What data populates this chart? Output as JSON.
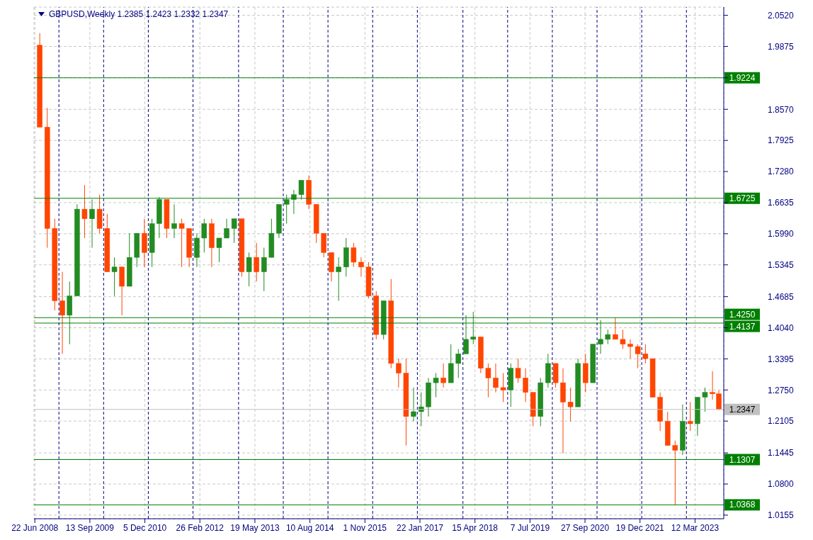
{
  "chart_data": {
    "type": "candlestick",
    "title": "GBPUSD,Weekly  1.2385 1.2423 1.2332 1.2347",
    "x": [
      "2008-08-01",
      "2008-10-01",
      "2008-12-01",
      "2009-02-01",
      "2009-04-01",
      "2009-06-01",
      "2009-08-01",
      "2009-10-01",
      "2009-12-01",
      "2010-02-01",
      "2010-04-01",
      "2010-06-01",
      "2010-08-01",
      "2010-10-01",
      "2010-12-01",
      "2011-02-01",
      "2011-04-01",
      "2011-06-01",
      "2011-08-01",
      "2011-10-01",
      "2011-12-01",
      "2012-02-01",
      "2012-04-01",
      "2012-06-01",
      "2012-08-01",
      "2012-10-01",
      "2012-12-01",
      "2013-02-01",
      "2013-04-01",
      "2013-06-01",
      "2013-08-01",
      "2013-10-01",
      "2013-12-01",
      "2014-02-01",
      "2014-04-01",
      "2014-06-01",
      "2014-08-01",
      "2014-10-01",
      "2014-12-01",
      "2015-02-01",
      "2015-04-01",
      "2015-06-01",
      "2015-08-01",
      "2015-10-01",
      "2015-12-01",
      "2016-02-01",
      "2016-04-01",
      "2016-06-01",
      "2016-08-01",
      "2016-10-01",
      "2016-12-01",
      "2017-02-01",
      "2017-04-01",
      "2017-06-01",
      "2017-08-01",
      "2017-10-01",
      "2017-12-01",
      "2018-02-01",
      "2018-04-01",
      "2018-06-01",
      "2018-08-01",
      "2018-10-01",
      "2018-12-01",
      "2019-02-01",
      "2019-04-01",
      "2019-06-01",
      "2019-08-01",
      "2019-10-01",
      "2019-12-01",
      "2020-02-01",
      "2020-04-01",
      "2020-06-01",
      "2020-08-01",
      "2020-10-01",
      "2020-12-01",
      "2021-02-01",
      "2021-04-01",
      "2021-06-01",
      "2021-08-01",
      "2021-10-01",
      "2021-12-01",
      "2022-02-01",
      "2022-04-01",
      "2022-06-01",
      "2022-08-01",
      "2022-10-01",
      "2022-12-01",
      "2023-02-01",
      "2023-04-01",
      "2023-06-01",
      "2023-08-01",
      "2023-09-22"
    ],
    "ohlc": [
      [
        1.99,
        2.015,
        1.82,
        1.82
      ],
      [
        1.82,
        1.86,
        1.57,
        1.61
      ],
      [
        1.61,
        1.63,
        1.44,
        1.46
      ],
      [
        1.46,
        1.52,
        1.35,
        1.43
      ],
      [
        1.43,
        1.5,
        1.37,
        1.47
      ],
      [
        1.47,
        1.66,
        1.47,
        1.65
      ],
      [
        1.65,
        1.7,
        1.59,
        1.63
      ],
      [
        1.63,
        1.67,
        1.57,
        1.65
      ],
      [
        1.65,
        1.68,
        1.6,
        1.61
      ],
      [
        1.61,
        1.64,
        1.52,
        1.52
      ],
      [
        1.52,
        1.55,
        1.47,
        1.53
      ],
      [
        1.53,
        1.53,
        1.43,
        1.49
      ],
      [
        1.49,
        1.6,
        1.49,
        1.55
      ],
      [
        1.55,
        1.6,
        1.53,
        1.6
      ],
      [
        1.6,
        1.63,
        1.53,
        1.56
      ],
      [
        1.56,
        1.63,
        1.53,
        1.62
      ],
      [
        1.62,
        1.675,
        1.59,
        1.67
      ],
      [
        1.67,
        1.67,
        1.59,
        1.61
      ],
      [
        1.61,
        1.66,
        1.59,
        1.62
      ],
      [
        1.62,
        1.63,
        1.53,
        1.61
      ],
      [
        1.61,
        1.61,
        1.53,
        1.55
      ],
      [
        1.55,
        1.6,
        1.53,
        1.59
      ],
      [
        1.59,
        1.63,
        1.56,
        1.62
      ],
      [
        1.62,
        1.63,
        1.53,
        1.57
      ],
      [
        1.57,
        1.59,
        1.54,
        1.59
      ],
      [
        1.59,
        1.63,
        1.59,
        1.61
      ],
      [
        1.61,
        1.63,
        1.58,
        1.63
      ],
      [
        1.63,
        1.63,
        1.51,
        1.52
      ],
      [
        1.52,
        1.56,
        1.49,
        1.55
      ],
      [
        1.55,
        1.58,
        1.5,
        1.52
      ],
      [
        1.52,
        1.57,
        1.48,
        1.55
      ],
      [
        1.55,
        1.63,
        1.55,
        1.6
      ],
      [
        1.6,
        1.66,
        1.59,
        1.66
      ],
      [
        1.66,
        1.68,
        1.62,
        1.67
      ],
      [
        1.67,
        1.69,
        1.64,
        1.68
      ],
      [
        1.68,
        1.71,
        1.67,
        1.71
      ],
      [
        1.71,
        1.72,
        1.65,
        1.66
      ],
      [
        1.66,
        1.66,
        1.58,
        1.6
      ],
      [
        1.6,
        1.6,
        1.55,
        1.56
      ],
      [
        1.56,
        1.56,
        1.5,
        1.52
      ],
      [
        1.52,
        1.55,
        1.46,
        1.53
      ],
      [
        1.53,
        1.59,
        1.51,
        1.57
      ],
      [
        1.57,
        1.58,
        1.53,
        1.54
      ],
      [
        1.54,
        1.55,
        1.51,
        1.53
      ],
      [
        1.53,
        1.54,
        1.465,
        1.47
      ],
      [
        1.47,
        1.48,
        1.38,
        1.39
      ],
      [
        1.39,
        1.46,
        1.38,
        1.46
      ],
      [
        1.46,
        1.505,
        1.32,
        1.33
      ],
      [
        1.33,
        1.34,
        1.28,
        1.31
      ],
      [
        1.31,
        1.34,
        1.16,
        1.22
      ],
      [
        1.22,
        1.28,
        1.21,
        1.23
      ],
      [
        1.23,
        1.27,
        1.2,
        1.24
      ],
      [
        1.24,
        1.3,
        1.22,
        1.29
      ],
      [
        1.29,
        1.31,
        1.26,
        1.3
      ],
      [
        1.3,
        1.33,
        1.28,
        1.29
      ],
      [
        1.29,
        1.37,
        1.29,
        1.33
      ],
      [
        1.33,
        1.36,
        1.3,
        1.35
      ],
      [
        1.35,
        1.43,
        1.35,
        1.38
      ],
      [
        1.38,
        1.437,
        1.37,
        1.385
      ],
      [
        1.385,
        1.385,
        1.31,
        1.32
      ],
      [
        1.32,
        1.33,
        1.26,
        1.3
      ],
      [
        1.3,
        1.33,
        1.27,
        1.28
      ],
      [
        1.28,
        1.31,
        1.25,
        1.275
      ],
      [
        1.275,
        1.33,
        1.24,
        1.32
      ],
      [
        1.32,
        1.34,
        1.29,
        1.3
      ],
      [
        1.3,
        1.32,
        1.25,
        1.27
      ],
      [
        1.27,
        1.27,
        1.2,
        1.22
      ],
      [
        1.22,
        1.3,
        1.2,
        1.29
      ],
      [
        1.29,
        1.35,
        1.28,
        1.33
      ],
      [
        1.33,
        1.33,
        1.28,
        1.29
      ],
      [
        1.29,
        1.32,
        1.144,
        1.25
      ],
      [
        1.25,
        1.28,
        1.21,
        1.24
      ],
      [
        1.24,
        1.34,
        1.24,
        1.33
      ],
      [
        1.33,
        1.35,
        1.27,
        1.29
      ],
      [
        1.29,
        1.37,
        1.29,
        1.37
      ],
      [
        1.37,
        1.42,
        1.35,
        1.38
      ],
      [
        1.38,
        1.4,
        1.37,
        1.39
      ],
      [
        1.39,
        1.425,
        1.38,
        1.38
      ],
      [
        1.38,
        1.4,
        1.36,
        1.37
      ],
      [
        1.37,
        1.38,
        1.34,
        1.365
      ],
      [
        1.365,
        1.37,
        1.32,
        1.35
      ],
      [
        1.35,
        1.37,
        1.33,
        1.34
      ],
      [
        1.34,
        1.34,
        1.26,
        1.26
      ],
      [
        1.26,
        1.27,
        1.19,
        1.21
      ],
      [
        1.21,
        1.23,
        1.16,
        1.16
      ],
      [
        1.16,
        1.17,
        1.036,
        1.15
      ],
      [
        1.15,
        1.245,
        1.14,
        1.21
      ],
      [
        1.21,
        1.25,
        1.19,
        1.205
      ],
      [
        1.205,
        1.26,
        1.18,
        1.26
      ],
      [
        1.26,
        1.28,
        1.23,
        1.27
      ],
      [
        1.27,
        1.314,
        1.255,
        1.267
      ],
      [
        1.267,
        1.274,
        1.2332,
        1.2347
      ]
    ],
    "colors": [
      "#ff4500",
      "#ff4500",
      "#ff4500",
      "#ff4500",
      "#228b22",
      "#228b22",
      "#ff4500",
      "#228b22",
      "#ff4500",
      "#ff4500",
      "#228b22",
      "#ff4500",
      "#228b22",
      "#228b22",
      "#ff4500",
      "#228b22",
      "#228b22",
      "#ff4500",
      "#228b22",
      "#ff4500",
      "#ff4500",
      "#228b22",
      "#228b22",
      "#ff4500",
      "#228b22",
      "#228b22",
      "#228b22",
      "#ff4500",
      "#228b22",
      "#ff4500",
      "#228b22",
      "#228b22",
      "#228b22",
      "#228b22",
      "#228b22",
      "#228b22",
      "#ff4500",
      "#ff4500",
      "#ff4500",
      "#ff4500",
      "#228b22",
      "#228b22",
      "#ff4500",
      "#ff4500",
      "#ff4500",
      "#ff4500",
      "#228b22",
      "#ff4500",
      "#ff4500",
      "#ff4500",
      "#228b22",
      "#228b22",
      "#228b22",
      "#228b22",
      "#ff4500",
      "#228b22",
      "#228b22",
      "#228b22",
      "#228b22",
      "#ff4500",
      "#ff4500",
      "#ff4500",
      "#ff4500",
      "#228b22",
      "#ff4500",
      "#ff4500",
      "#ff4500",
      "#228b22",
      "#228b22",
      "#ff4500",
      "#ff4500",
      "#ff4500",
      "#228b22",
      "#ff4500",
      "#228b22",
      "#228b22",
      "#228b22",
      "#ff4500",
      "#ff4500",
      "#ff4500",
      "#ff4500",
      "#ff4500",
      "#ff4500",
      "#ff4500",
      "#ff4500",
      "#ff4500",
      "#228b22",
      "#ff4500",
      "#228b22",
      "#228b22",
      "#ff4500",
      "#ff4500"
    ],
    "xlim": [
      "2008-06-15",
      "2023-11-01"
    ],
    "xticks": [
      {
        "value": "2008-06-22",
        "label": "22 Jun 2008"
      },
      {
        "value": "2009-09-13",
        "label": "13 Sep 2009"
      },
      {
        "value": "2010-12-05",
        "label": "5 Dec 2010"
      },
      {
        "value": "2012-02-26",
        "label": "26 Feb 2012"
      },
      {
        "value": "2013-05-19",
        "label": "19 May 2013"
      },
      {
        "value": "2014-08-10",
        "label": "10 Aug 2014"
      },
      {
        "value": "2015-11-01",
        "label": "1 Nov 2015"
      },
      {
        "value": "2017-01-22",
        "label": "22 Jan 2017"
      },
      {
        "value": "2018-04-15",
        "label": "15 Apr 2018"
      },
      {
        "value": "2019-07-07",
        "label": "7 Jul 2019"
      },
      {
        "value": "2020-09-27",
        "label": "27 Sep 2020"
      },
      {
        "value": "2021-12-19",
        "label": "19 Dec 2021"
      },
      {
        "value": "2023-03-12",
        "label": "12 Mar 2023"
      }
    ],
    "ylim": [
      1.008,
      2.069
    ],
    "yticks": [
      1.0155,
      {
        "value": 1.08,
        "label": "1.0800"
      },
      1.1445,
      1.2105,
      {
        "value": 1.275,
        "label": "1.2750"
      },
      1.3395,
      {
        "value": 1.404,
        "label": "1.4040"
      },
      1.4685,
      1.5345,
      {
        "value": 1.599,
        "label": "1.5990"
      },
      1.6635,
      {
        "value": 1.728,
        "label": "1.7280"
      },
      1.7925,
      {
        "value": 1.857,
        "label": "1.8570"
      },
      {
        "value": 1.9225,
        "label": null
      },
      1.9875,
      {
        "value": 2.052,
        "label": "2.0520"
      }
    ],
    "grid": true,
    "ref_lines": [
      {
        "axis": "y",
        "value": 1.9224,
        "label": "1.9224",
        "color": "#008000"
      },
      {
        "axis": "y",
        "value": 1.6725,
        "label": "1.6725",
        "color": "#008000"
      },
      {
        "axis": "y",
        "value": 1.425,
        "label": "1.4250",
        "color": "#008000"
      },
      {
        "axis": "y",
        "value": 1.4137,
        "label": "1.4137",
        "color": "#008000"
      },
      {
        "axis": "y",
        "value": 1.1307,
        "label": "1.1307",
        "color": "#008000"
      },
      {
        "axis": "y",
        "value": 1.0368,
        "label": "1.0368",
        "color": "#008000"
      },
      {
        "axis": "y",
        "value": 1.2347,
        "label": "1.2347",
        "color": "#c0c0c0"
      },
      {
        "axis": "x",
        "value": "2009-01-04",
        "color": "#000080",
        "line_style": "dashed"
      },
      {
        "axis": "x",
        "value": "2010-01-03",
        "color": "#000080",
        "line_style": "dashed"
      },
      {
        "axis": "x",
        "value": "2011-01-02",
        "color": "#000080",
        "line_style": "dashed"
      },
      {
        "axis": "x",
        "value": "2012-01-01",
        "color": "#000080",
        "line_style": "dashed"
      },
      {
        "axis": "x",
        "value": "2013-01-06",
        "color": "#000080",
        "line_style": "dashed"
      },
      {
        "axis": "x",
        "value": "2014-01-05",
        "color": "#000080",
        "line_style": "dashed"
      },
      {
        "axis": "x",
        "value": "2015-01-04",
        "color": "#000080",
        "line_style": "dashed"
      },
      {
        "axis": "x",
        "value": "2016-01-03",
        "color": "#000080",
        "line_style": "dashed"
      },
      {
        "axis": "x",
        "value": "2017-01-01",
        "color": "#000080",
        "line_style": "dashed"
      },
      {
        "axis": "x",
        "value": "2018-01-07",
        "color": "#000080",
        "line_style": "dashed"
      },
      {
        "axis": "x",
        "value": "2019-01-06",
        "color": "#000080",
        "line_style": "dashed"
      },
      {
        "axis": "x",
        "value": "2020-01-05",
        "color": "#000080",
        "line_style": "dashed"
      },
      {
        "axis": "x",
        "value": "2021-01-03",
        "color": "#000080",
        "line_style": "dashed"
      },
      {
        "axis": "x",
        "value": "2022-01-02",
        "color": "#000080",
        "line_style": "dashed"
      },
      {
        "axis": "x",
        "value": "2023-01-01",
        "color": "#000080",
        "line_style": "dashed"
      }
    ]
  }
}
